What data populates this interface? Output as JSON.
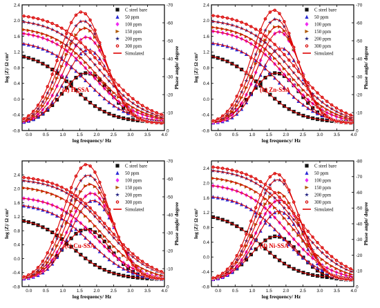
{
  "figure": {
    "legend_labels": [
      "C steel bare",
      "50 ppm",
      "100 ppm",
      "150 ppm",
      "200 ppm",
      "300 ppm",
      "Simulated"
    ],
    "series_colors": [
      "#111111",
      "#2b2bd6",
      "#f02cf0",
      "#b05a08",
      "#202080",
      "#d81010"
    ],
    "simulated_color": "#dd0000",
    "marker_shapes": [
      "square",
      "triangle-up",
      "diamond",
      "triangle-right",
      "star",
      "circle"
    ]
  },
  "chart_data": [
    {
      "type": "line",
      "title": "(a) H₂SSA",
      "xlabel": "log frequency/ Hz",
      "ylabel": "log |Z|/ Ω cm²",
      "y2label": "Phase angle/ degree",
      "xlim": [
        -0.2,
        4.0
      ],
      "ylim": [
        -0.8,
        2.4
      ],
      "y2lim": [
        0,
        -70
      ],
      "xticks": [
        "0.0",
        "0.5",
        "1.0",
        "1.5",
        "2.0",
        "2.5",
        "3.0",
        "3.5",
        "4.0"
      ],
      "yticks": [
        "-0.8",
        "-0.4",
        "0.0",
        "0.4",
        "0.8",
        "1.2",
        "1.6",
        "2.0",
        "2.4"
      ],
      "y2ticks": [
        "0",
        "-10",
        "-20",
        "-30",
        "-40",
        "-50",
        "-60",
        "-70"
      ],
      "legend_position": "top-right",
      "series": [
        {
          "name": "C steel bare",
          "modulus": {
            "high": 1.2,
            "low": -0.6,
            "center": 1.3,
            "width": 0.55
          },
          "phase": {
            "peak": -32,
            "center": 1.7,
            "width": 1.0,
            "min": -4
          }
        },
        {
          "name": "50 ppm",
          "modulus": {
            "high": 1.5,
            "low": -0.6,
            "center": 1.7,
            "width": 0.6
          },
          "phase": {
            "peak": -45,
            "center": 1.75,
            "width": 0.95,
            "min": -4
          }
        },
        {
          "name": "100 ppm",
          "modulus": {
            "high": 1.75,
            "low": -0.6,
            "center": 1.9,
            "width": 0.62
          },
          "phase": {
            "peak": -52,
            "center": 1.7,
            "width": 0.95,
            "min": -4
          }
        },
        {
          "name": "150 ppm",
          "modulus": {
            "high": 1.85,
            "low": -0.6,
            "center": 2.0,
            "width": 0.64
          },
          "phase": {
            "peak": -57,
            "center": 1.65,
            "width": 0.95,
            "min": -4
          }
        },
        {
          "name": "200 ppm",
          "modulus": {
            "high": 2.05,
            "low": -0.6,
            "center": 2.1,
            "width": 0.66
          },
          "phase": {
            "peak": -61,
            "center": 1.6,
            "width": 0.95,
            "min": -4
          }
        },
        {
          "name": "300 ppm",
          "modulus": {
            "high": 2.2,
            "low": -0.6,
            "center": 2.2,
            "width": 0.68
          },
          "phase": {
            "peak": -66,
            "center": 1.55,
            "width": 0.95,
            "min": -4
          }
        }
      ]
    },
    {
      "type": "line",
      "title": "(b) Zn-SSA",
      "xlabel": "log frequency/ Hz",
      "ylabel": "log |Z|/ Ω cm²",
      "y2label": "Phase angle/ degree",
      "xlim": [
        -0.2,
        4.0
      ],
      "ylim": [
        -0.8,
        2.4
      ],
      "y2lim": [
        0,
        -70
      ],
      "xticks": [
        "0.0",
        "0.5",
        "1.0",
        "1.5",
        "2.0",
        "2.5",
        "3.0",
        "3.5",
        "4.0"
      ],
      "yticks": [
        "-0.8",
        "-0.4",
        "0.0",
        "0.4",
        "0.8",
        "1.2",
        "1.6",
        "2.0",
        "2.4"
      ],
      "y2ticks": [
        "0",
        "-10",
        "-20",
        "-30",
        "-40",
        "-50",
        "-60",
        "-70"
      ],
      "legend_position": "top-right",
      "series": [
        {
          "name": "C steel bare",
          "modulus": {
            "high": 1.2,
            "low": -0.6,
            "center": 1.3,
            "width": 0.55
          },
          "phase": {
            "peak": -32,
            "center": 1.7,
            "width": 1.0,
            "min": -4
          }
        },
        {
          "name": "50 ppm",
          "modulus": {
            "high": 1.5,
            "low": -0.65,
            "center": 1.8,
            "width": 0.6
          },
          "phase": {
            "peak": -46,
            "center": 1.85,
            "width": 0.9,
            "min": -4
          }
        },
        {
          "name": "100 ppm",
          "modulus": {
            "high": 1.8,
            "low": -0.65,
            "center": 2.0,
            "width": 0.62
          },
          "phase": {
            "peak": -55,
            "center": 1.8,
            "width": 0.9,
            "min": -4
          }
        },
        {
          "name": "150 ppm",
          "modulus": {
            "high": 1.9,
            "low": -0.65,
            "center": 2.1,
            "width": 0.64
          },
          "phase": {
            "peak": -58,
            "center": 1.75,
            "width": 0.92,
            "min": -4
          }
        },
        {
          "name": "200 ppm",
          "modulus": {
            "high": 2.05,
            "low": -0.65,
            "center": 2.2,
            "width": 0.66
          },
          "phase": {
            "peak": -62,
            "center": 1.7,
            "width": 0.92,
            "min": -4
          }
        },
        {
          "name": "300 ppm",
          "modulus": {
            "high": 2.2,
            "low": -0.65,
            "center": 2.3,
            "width": 0.68
          },
          "phase": {
            "peak": -67,
            "center": 1.65,
            "width": 0.92,
            "min": -4
          }
        }
      ]
    },
    {
      "type": "line",
      "title": "(c) Cu-SSA",
      "xlabel": "log frequency/ Hz",
      "ylabel": "log |Z|/ Ω cm²",
      "y2label": "Phase angle/ degree",
      "xlim": [
        -0.2,
        4.0
      ],
      "ylim": [
        -0.8,
        2.8
      ],
      "y2lim": [
        0,
        -70
      ],
      "xticks": [
        "0.0",
        "0.5",
        "1.0",
        "1.5",
        "2.0",
        "2.5",
        "3.0",
        "3.5",
        "4.0"
      ],
      "yticks": [
        "-0.8",
        "-0.4",
        "0.0",
        "0.4",
        "0.8",
        "1.2",
        "1.6",
        "2.0",
        "2.4"
      ],
      "y2ticks": [
        "0",
        "-10",
        "-20",
        "-30",
        "-40",
        "-50",
        "-60",
        "-70"
      ],
      "legend_position": "top-right",
      "series": [
        {
          "name": "C steel bare",
          "modulus": {
            "high": 1.2,
            "low": -0.6,
            "center": 1.3,
            "width": 0.55
          },
          "phase": {
            "peak": -32,
            "center": 1.7,
            "width": 1.0,
            "min": -4
          }
        },
        {
          "name": "50 ppm",
          "modulus": {
            "high": 1.6,
            "low": -0.65,
            "center": 1.8,
            "width": 0.6
          },
          "phase": {
            "peak": -48,
            "center": 1.9,
            "width": 0.95,
            "min": -4
          }
        },
        {
          "name": "100 ppm",
          "modulus": {
            "high": 1.8,
            "low": -0.65,
            "center": 2.0,
            "width": 0.62
          },
          "phase": {
            "peak": -52,
            "center": 1.85,
            "width": 0.95,
            "min": -4
          }
        },
        {
          "name": "150 ppm",
          "modulus": {
            "high": 2.1,
            "low": -0.65,
            "center": 2.15,
            "width": 0.64
          },
          "phase": {
            "peak": -57,
            "center": 1.8,
            "width": 0.95,
            "min": -4
          }
        },
        {
          "name": "200 ppm",
          "modulus": {
            "high": 2.3,
            "low": -0.65,
            "center": 2.3,
            "width": 0.66
          },
          "phase": {
            "peak": -62,
            "center": 1.75,
            "width": 0.95,
            "min": -4
          }
        },
        {
          "name": "300 ppm",
          "modulus": {
            "high": 2.4,
            "low": -0.65,
            "center": 2.35,
            "width": 0.68
          },
          "phase": {
            "peak": -68,
            "center": 1.7,
            "width": 0.95,
            "min": -4
          }
        }
      ]
    },
    {
      "type": "line",
      "title": "(d) Ni-SSA",
      "xlabel": "log frequency/ Hz",
      "ylabel": "log |Z|/ Ω cm²",
      "y2label": "Phase angle/ degree",
      "xlim": [
        -0.2,
        4.0
      ],
      "ylim": [
        -0.8,
        2.6
      ],
      "y2lim": [
        0,
        -80
      ],
      "xticks": [
        "0.0",
        "0.5",
        "1.0",
        "1.5",
        "2.0",
        "2.5",
        "3.0",
        "3.5",
        "4.0"
      ],
      "yticks": [
        "-0.8",
        "-0.4",
        "0.0",
        "0.4",
        "0.8",
        "1.2",
        "1.6",
        "2.0",
        "2.4"
      ],
      "y2ticks": [
        "0",
        "-10",
        "-20",
        "-30",
        "-40",
        "-50",
        "-60",
        "-70",
        "-80"
      ],
      "legend_position": "top-right",
      "series": [
        {
          "name": "C steel bare",
          "modulus": {
            "high": 1.2,
            "low": -0.6,
            "center": 1.3,
            "width": 0.55
          },
          "phase": {
            "peak": -32,
            "center": 1.7,
            "width": 1.0,
            "min": -4
          }
        },
        {
          "name": "50 ppm",
          "modulus": {
            "high": 1.7,
            "low": -0.65,
            "center": 1.9,
            "width": 0.6
          },
          "phase": {
            "peak": -48,
            "center": 1.8,
            "width": 0.95,
            "min": -4
          }
        },
        {
          "name": "100 ppm",
          "modulus": {
            "high": 2.0,
            "low": -0.65,
            "center": 2.05,
            "width": 0.62
          },
          "phase": {
            "peak": -55,
            "center": 1.8,
            "width": 0.95,
            "min": -4
          }
        },
        {
          "name": "150 ppm",
          "modulus": {
            "high": 2.2,
            "low": -0.65,
            "center": 2.2,
            "width": 0.64
          },
          "phase": {
            "peak": -60,
            "center": 1.75,
            "width": 0.95,
            "min": -4
          }
        },
        {
          "name": "200 ppm",
          "modulus": {
            "high": 2.4,
            "low": -0.65,
            "center": 2.35,
            "width": 0.66
          },
          "phase": {
            "peak": -68,
            "center": 1.75,
            "width": 0.95,
            "min": -4
          }
        },
        {
          "name": "300 ppm",
          "modulus": {
            "high": 2.5,
            "low": -0.65,
            "center": 2.45,
            "width": 0.68
          },
          "phase": {
            "peak": -72,
            "center": 1.7,
            "width": 0.95,
            "min": -4
          }
        }
      ]
    }
  ]
}
